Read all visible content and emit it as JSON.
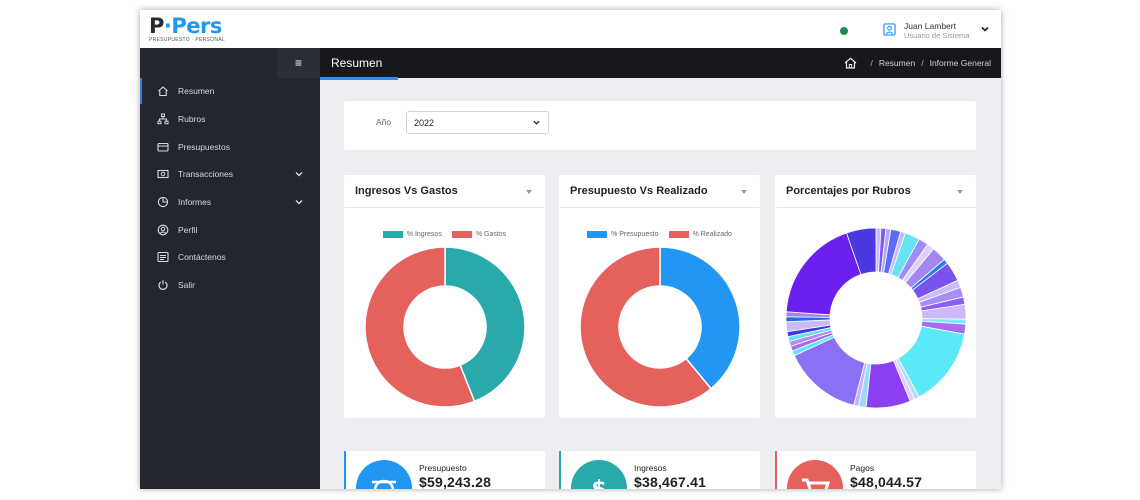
{
  "app": {
    "logo_main": "P",
    "logo_dot": "·",
    "logo_accent": "Pers",
    "logo_sub": "PRESUPUESTO · PERSONAL"
  },
  "user": {
    "name": "Juan Lambert",
    "role": "Usuario de Sistema"
  },
  "sidebar": {
    "items": [
      {
        "label": "Resumen",
        "icon": "home-icon",
        "active": true
      },
      {
        "label": "Rubros",
        "icon": "sitemap-icon"
      },
      {
        "label": "Presupuestos",
        "icon": "wallet-icon"
      },
      {
        "label": "Transacciones",
        "icon": "money-icon",
        "submenu": true
      },
      {
        "label": "Informes",
        "icon": "pie-chart-icon",
        "submenu": true
      },
      {
        "label": "Perfil",
        "icon": "user-circle-icon"
      },
      {
        "label": "Contáctenos",
        "icon": "message-icon"
      },
      {
        "label": "Salir",
        "icon": "power-icon"
      }
    ]
  },
  "header": {
    "menu_icon": "≡",
    "title": "Resumen",
    "breadcrumb": [
      "Resumen",
      "Informe General"
    ],
    "separator": "/"
  },
  "filter": {
    "year_label": "Año",
    "year_value": "2022"
  },
  "charts": [
    {
      "title": "Ingresos Vs Gastos",
      "legend": [
        {
          "label": "% Ingresos",
          "color": "#2aa9ad"
        },
        {
          "label": "% Gastos",
          "color": "#e5615b"
        }
      ],
      "values": [
        44,
        56
      ]
    },
    {
      "title": "Presupuesto Vs Realizado",
      "legend": [
        {
          "label": "% Presupuesto",
          "color": "#2196f3"
        },
        {
          "label": "% Realizado",
          "color": "#e5615b"
        }
      ],
      "values": [
        39,
        61
      ]
    },
    {
      "title": "Porcentajes por Rubros",
      "legend": [],
      "values": [
        1,
        1,
        1,
        2,
        1,
        3,
        2,
        1.5,
        3,
        1,
        4,
        1.5,
        2,
        1.5,
        3,
        1,
        2,
        16,
        1,
        1,
        9,
        1.5,
        1,
        16,
        1,
        1,
        1,
        1,
        1,
        2,
        1,
        1,
        21,
        6
      ],
      "colors": [
        "#c7bbf7",
        "#7b5cf0",
        "#b9a8f5",
        "#5b6cf5",
        "#c9b8fb",
        "#67e4f3",
        "#9f8df5",
        "#dcd2fb",
        "#a388f3",
        "#2b7df0",
        "#7a53ee",
        "#cabdf9",
        "#a48ff5",
        "#8b5ff2",
        "#cdb8f9",
        "#7fe8f5",
        "#a66df3",
        "#5ce9f7",
        "#b5d9f9",
        "#ddd0fb",
        "#8c3ff0",
        "#9bd9f9",
        "#c2b2f7",
        "#8b70f3",
        "#5fe6f6",
        "#a06ef5",
        "#ba86f3",
        "#63e3f5",
        "#3f3ae0",
        "#c8b9f7",
        "#1f6fe8",
        "#a97ff3",
        "#6b1ff0",
        "#4c38e0"
      ]
    }
  ],
  "stats": [
    {
      "label": "Presupuesto",
      "value": "$59,243.28",
      "color": "#2196f3",
      "icon": "scale-icon"
    },
    {
      "label": "Ingresos",
      "value": "$38,467.41",
      "color": "#2aa9ad",
      "icon": "dollar-icon"
    },
    {
      "label": "Pagos",
      "value": "$48,044.57",
      "color": "#e5615b",
      "icon": "cart-icon"
    }
  ]
}
